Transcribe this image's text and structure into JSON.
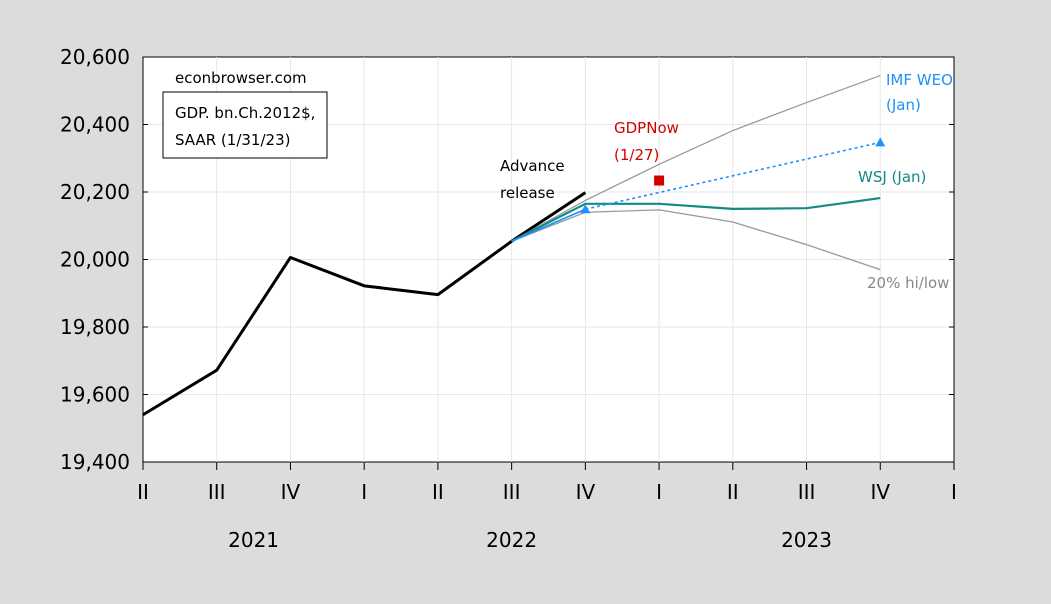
{
  "chart_data": {
    "type": "line",
    "watermark": "econbrowser.com",
    "title_box": [
      "GDP. bn.Ch.2012$,",
      "SAAR (1/31/23)"
    ],
    "yticks": [
      19400,
      19600,
      19800,
      20000,
      20200,
      20400,
      20600
    ],
    "ytick_labels": [
      "19,400",
      "19,600",
      "19,800",
      "20,000",
      "20,200",
      "20,400",
      "20,600"
    ],
    "ylim": [
      19400,
      20600
    ],
    "quarter_labels": [
      "II",
      "III",
      "IV",
      "I",
      "II",
      "III",
      "IV",
      "I",
      "II",
      "III",
      "IV",
      "I"
    ],
    "year_labels": [
      "2021",
      "2022",
      "2023"
    ],
    "grid": true,
    "series": [
      {
        "key": "actual",
        "color": "#000000",
        "x": [
          0,
          1,
          2,
          3,
          4,
          5
        ],
        "values": [
          19540,
          19672,
          20006,
          19922,
          19896,
          20054
        ]
      },
      {
        "key": "advance",
        "color": "#000000",
        "x": [
          5,
          6
        ],
        "values": [
          20054,
          20198
        ]
      },
      {
        "key": "hi20",
        "color": "#999999",
        "x": [
          5,
          6,
          7,
          8,
          9,
          10
        ],
        "values": [
          20054,
          20175,
          20282,
          20382,
          20465,
          20545
        ]
      },
      {
        "key": "low20",
        "color": "#999999",
        "x": [
          5,
          6,
          7,
          8,
          9,
          10
        ],
        "values": [
          20054,
          20140,
          20147,
          20111,
          20044,
          19970
        ]
      },
      {
        "key": "wsj",
        "color": "#148a85",
        "x": [
          5,
          6,
          7,
          8,
          9,
          10
        ],
        "values": [
          20054,
          20165,
          20165,
          20150,
          20152,
          20182
        ]
      },
      {
        "key": "imf_line",
        "color": "#1e90ff",
        "x": [
          5,
          6
        ],
        "values": [
          20054,
          20149
        ]
      },
      {
        "key": "imf_dotted",
        "color": "#1e90ff",
        "x": [
          6,
          10
        ],
        "values": [
          20149,
          20347
        ]
      }
    ],
    "imf_points": {
      "x": [
        6,
        10
      ],
      "values": [
        20149,
        20347
      ],
      "color": "#1e90ff"
    },
    "gdpnow_point": {
      "x": 7,
      "value": 20234,
      "color": "#d40000"
    },
    "labels": {
      "advance": [
        "Advance",
        "release"
      ],
      "gdpnow": [
        "GDPNow",
        "(1/27)"
      ],
      "imf": [
        "IMF WEO",
        "(Jan)"
      ],
      "wsj": "WSJ (Jan)",
      "hilow": "20% hi/low"
    }
  }
}
